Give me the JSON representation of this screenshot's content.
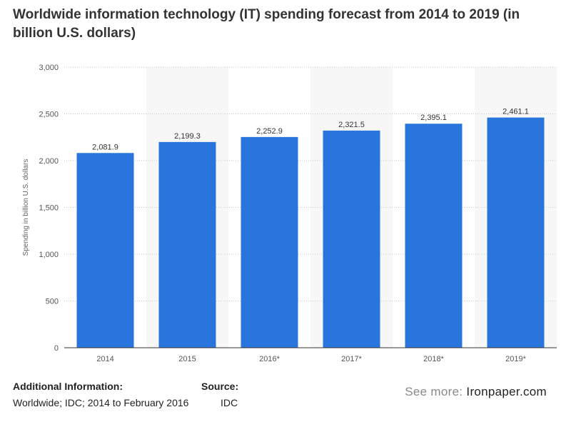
{
  "title": "Worldwide information technology (IT) spending forecast from 2014 to 2019 (in billion U.S. dollars)",
  "chart_data": {
    "type": "bar",
    "categories": [
      "2014",
      "2015",
      "2016*",
      "2017*",
      "2018*",
      "2019*"
    ],
    "values": [
      2081.9,
      2199.3,
      2252.9,
      2321.5,
      2395.1,
      2461.1
    ],
    "value_labels": [
      "2,081.9",
      "2,199.3",
      "2,252.9",
      "2,321.5",
      "2,395.1",
      "2,461.1"
    ],
    "ylabel": "Spending in billion U.S. dollars",
    "xlabel": "",
    "ylim": [
      0,
      3000
    ],
    "yticks": [
      0,
      500,
      1000,
      1500,
      2000,
      2500,
      3000
    ],
    "ytick_labels": [
      "0",
      "500",
      "1,000",
      "1,500",
      "2,000",
      "2,500",
      "3,000"
    ],
    "grid": true,
    "alternating_column_shading": true,
    "bar_color": "#2876dd"
  },
  "footer": {
    "additional_info_label": "Additional Information:",
    "additional_info_text": "Worldwide; IDC; 2014 to February 2016",
    "source_label": "Source:",
    "source_text": "IDC",
    "see_more_label": "See more:",
    "see_more_site": "Ironpaper.com"
  }
}
